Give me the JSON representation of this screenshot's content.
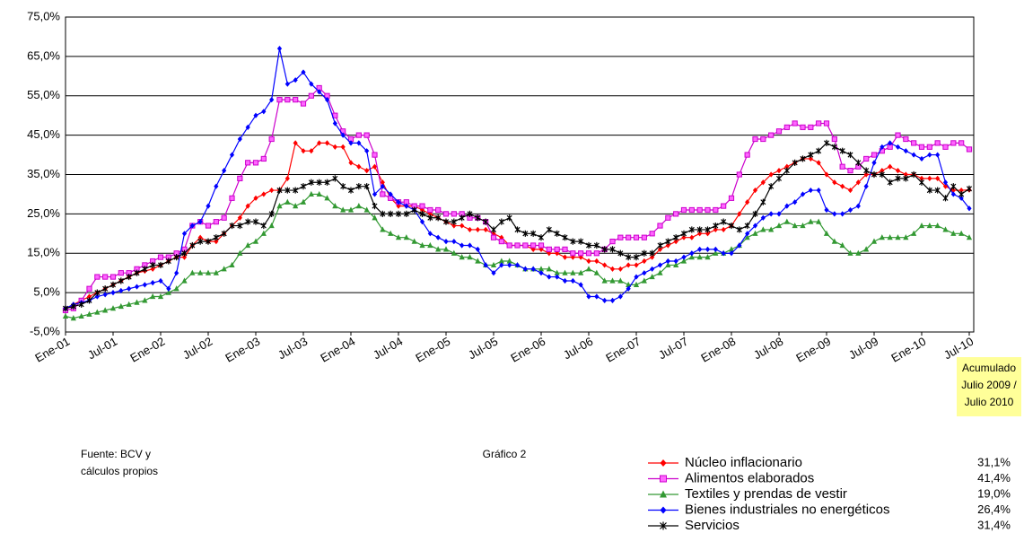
{
  "chart_data": {
    "type": "line",
    "categories": [
      "Ene-01",
      null,
      null,
      null,
      null,
      null,
      "Jul-01",
      null,
      null,
      null,
      null,
      null,
      "Ene-02",
      null,
      null,
      null,
      null,
      null,
      "Jul-02",
      null,
      null,
      null,
      null,
      null,
      "Ene-03",
      null,
      null,
      null,
      null,
      null,
      "Jul-03",
      null,
      null,
      null,
      null,
      null,
      "Ene-04",
      null,
      null,
      null,
      null,
      null,
      "Jul-04",
      null,
      null,
      null,
      null,
      null,
      "Ene-05",
      null,
      null,
      null,
      null,
      null,
      "Jul-05",
      null,
      null,
      null,
      null,
      null,
      "Ene-06",
      null,
      null,
      null,
      null,
      null,
      "Jul-06",
      null,
      null,
      null,
      null,
      null,
      "Ene-07",
      null,
      null,
      null,
      null,
      null,
      "Jul-07",
      null,
      null,
      null,
      null,
      null,
      "Ene-08",
      null,
      null,
      null,
      null,
      null,
      "Jul-08",
      null,
      null,
      null,
      null,
      null,
      "Ene-09",
      null,
      null,
      null,
      null,
      null,
      "Jul-09",
      null,
      null,
      null,
      null,
      null,
      "Ene-10",
      null,
      null,
      null,
      null,
      null,
      "Jul-10"
    ],
    "series": [
      {
        "name": "Núcleo inflacionario",
        "color": "#ff0000",
        "marker": "diamond",
        "values": [
          1,
          2,
          3,
          4,
          5,
          6,
          7,
          8,
          9,
          10,
          10.5,
          11,
          12,
          13,
          14,
          14,
          17,
          19,
          18,
          18,
          20,
          22,
          24,
          27,
          29,
          30,
          31,
          31,
          34,
          43,
          41,
          41,
          43,
          43,
          42,
          42,
          38,
          37,
          36,
          37,
          33,
          29,
          27,
          27,
          27,
          26,
          25,
          24,
          23,
          22,
          22,
          21,
          21,
          21,
          20,
          19,
          17,
          17,
          17,
          16,
          16,
          15,
          15,
          14,
          14,
          14,
          13,
          13,
          12,
          11,
          11,
          12,
          12,
          13,
          14,
          16,
          17,
          18,
          19,
          19,
          20,
          20,
          21,
          21,
          22,
          25,
          28,
          31,
          33,
          35,
          36,
          37,
          38,
          39,
          39,
          38,
          35,
          33,
          32,
          31,
          33,
          35,
          35,
          36,
          37,
          36,
          35,
          35,
          34,
          34,
          34,
          32,
          31,
          31,
          31.1
        ]
      },
      {
        "name": "Alimentos elaborados",
        "color": "#cc00cc",
        "marker": "square",
        "values": [
          0.5,
          1,
          3,
          6,
          9,
          9,
          9,
          10,
          10,
          11,
          12,
          13,
          14,
          14,
          15,
          16,
          22,
          23,
          22,
          23,
          24,
          29,
          34,
          38,
          38,
          39,
          44,
          54,
          54,
          54,
          53,
          55,
          57,
          55,
          50,
          46,
          44,
          45,
          45,
          40,
          30,
          29,
          28,
          28,
          27,
          27,
          26,
          26,
          25,
          25,
          25,
          24,
          24,
          23,
          19,
          18,
          17,
          17,
          17,
          17,
          17,
          16,
          16,
          16,
          15,
          15,
          15,
          15,
          16,
          18,
          19,
          19,
          19,
          19,
          20,
          22,
          24,
          25,
          26,
          26,
          26,
          26,
          26,
          27,
          29,
          35,
          40,
          44,
          44,
          45,
          46,
          47,
          48,
          47,
          47,
          48,
          48,
          44,
          37,
          36,
          37,
          39,
          40,
          41,
          42,
          45,
          44,
          43,
          42,
          42,
          43,
          42,
          43,
          43,
          41.4
        ]
      },
      {
        "name": "Textiles y prendas de vestir",
        "color": "#339933",
        "marker": "triangle",
        "values": [
          -1,
          -1.5,
          -1,
          -0.5,
          0,
          0.5,
          1,
          1.5,
          2,
          2.5,
          3,
          4,
          4,
          5,
          6,
          8,
          10,
          10,
          10,
          10,
          11,
          12,
          15,
          17,
          18,
          20,
          22,
          27,
          28,
          27,
          28,
          30,
          30,
          29,
          27,
          26,
          26,
          27,
          26,
          24,
          21,
          20,
          19,
          19,
          18,
          17,
          17,
          16,
          16,
          15,
          14,
          14,
          13,
          12,
          12,
          13,
          13,
          12,
          11,
          11,
          11,
          11,
          10,
          10,
          10,
          10,
          11,
          10,
          8,
          8,
          8,
          7,
          7,
          8,
          9,
          10,
          12,
          12,
          13,
          14,
          14,
          14,
          15,
          15,
          16,
          17,
          19,
          20,
          21,
          21,
          22,
          23,
          22,
          22,
          23,
          23,
          20,
          18,
          17,
          15,
          15,
          16,
          18,
          19,
          19,
          19,
          19,
          20,
          22,
          22,
          22,
          21,
          20,
          20,
          19.0
        ]
      },
      {
        "name": "Bienes industriales no energéticos",
        "color": "#0000ff",
        "marker": "diamond",
        "values": [
          1,
          2,
          2.5,
          3,
          4,
          4.5,
          5,
          5.5,
          6,
          6.5,
          7,
          7.5,
          8,
          6,
          10,
          20,
          22,
          23,
          27,
          32,
          36,
          40,
          44,
          47,
          50,
          51,
          54,
          67,
          58,
          59,
          61,
          58,
          56,
          54,
          48,
          45,
          43,
          43,
          41,
          30,
          32,
          30,
          28,
          27,
          26,
          23,
          20,
          19,
          18,
          18,
          17,
          17,
          16,
          12,
          10,
          12,
          12,
          12,
          11,
          11,
          10,
          9,
          9,
          8,
          8,
          7,
          4,
          4,
          3,
          3,
          4,
          6,
          9,
          10,
          11,
          12,
          13,
          13,
          14,
          15,
          16,
          16,
          16,
          15,
          15,
          17,
          20,
          22,
          24,
          25,
          25,
          27,
          28,
          30,
          31,
          31,
          26,
          25,
          25,
          26,
          27,
          32,
          38,
          42,
          43,
          42,
          41,
          40,
          39,
          40,
          40,
          33,
          30,
          29,
          26.4
        ]
      },
      {
        "name": "Servicios",
        "color": "#000000",
        "marker": "star",
        "values": [
          1,
          1.5,
          2,
          3,
          5,
          6,
          7,
          8,
          9,
          10,
          11,
          12,
          12,
          13,
          14,
          15,
          17,
          18,
          18,
          19,
          20,
          22,
          22,
          23,
          23,
          22,
          25,
          31,
          31,
          31,
          32,
          33,
          33,
          33,
          34,
          32,
          31,
          32,
          32,
          27,
          25,
          25,
          25,
          25,
          26,
          25,
          24,
          24,
          23,
          23,
          24,
          25,
          24,
          23,
          21,
          23,
          24,
          21,
          20,
          20,
          19,
          21,
          20,
          19,
          18,
          18,
          17,
          17,
          16,
          16,
          15,
          14,
          14,
          15,
          15,
          17,
          18,
          19,
          20,
          21,
          21,
          21,
          22,
          23,
          22,
          21,
          22,
          25,
          28,
          32,
          34,
          36,
          38,
          39,
          40,
          41,
          43,
          42,
          41,
          40,
          38,
          36,
          35,
          35,
          33,
          34,
          34,
          35,
          33,
          31,
          31,
          29,
          32,
          30,
          31.4
        ]
      }
    ],
    "ylim": [
      -5,
      75
    ],
    "yticks": [
      {
        "value": -5,
        "label": "-5,0%"
      },
      {
        "value": 5,
        "label": "5,0%"
      },
      {
        "value": 15,
        "label": "15,0%"
      },
      {
        "value": 25,
        "label": "25,0%"
      },
      {
        "value": 35,
        "label": "35,0%"
      },
      {
        "value": 45,
        "label": "45,0%"
      },
      {
        "value": 55,
        "label": "55,0%"
      },
      {
        "value": 65,
        "label": "65,0%"
      },
      {
        "value": 75,
        "label": "75,0%"
      }
    ],
    "grid": true,
    "source": [
      "Fuente: BCV y",
      "cálculos propios"
    ],
    "caption": "Gráfico 2",
    "accumulated": {
      "header": [
        "Acumulado",
        "Julio 2009 /",
        "Julio 2010"
      ],
      "values": [
        "31,1%",
        "41,4%",
        "19,0%",
        "26,4%",
        "31,4%"
      ]
    }
  }
}
